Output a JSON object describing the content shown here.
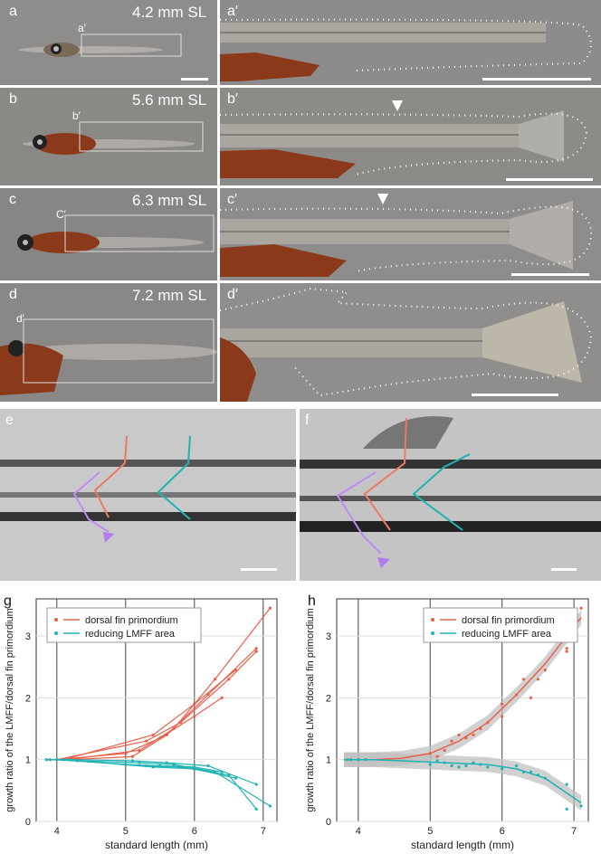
{
  "photo_rows": [
    {
      "label": "a",
      "sub": "a′",
      "zoom_label": "a′",
      "length": "4.2 mm SL"
    },
    {
      "label": "b",
      "sub": "b′",
      "zoom_label": "b′",
      "length": "5.6 mm SL"
    },
    {
      "label": "c",
      "sub": "C′",
      "zoom_label": "c′",
      "length": "6.3 mm SL"
    },
    {
      "label": "d",
      "sub": "d′",
      "zoom_label": "d′",
      "length": "7.2 mm SL"
    }
  ],
  "panel_e": {
    "label": "e"
  },
  "panel_f": {
    "label": "f"
  },
  "colors": {
    "dorsal": "#e8604a",
    "lmff": "#1fb3b3",
    "arrow_purple": "#b07cf0",
    "line_purple": "#c08af5",
    "line_red": "#f07862"
  },
  "chart_data": [
    {
      "panel": "g",
      "type": "line",
      "ylabel": "growth ratio of the LMFF/dorsal fin primordium",
      "xlabel": "standard length (mm)",
      "xlim": [
        3.7,
        7.2
      ],
      "ylim": [
        0,
        3.6
      ],
      "xticks": [
        "4",
        "5",
        "6",
        "7"
      ],
      "yticks": [
        "0",
        "1",
        "2",
        "3"
      ],
      "legend_position": "top-left",
      "legend": [
        "dorsal fin primordium",
        "reducing LMFF area"
      ],
      "series": [
        {
          "name": "dorsal fin primordium",
          "group": "dorsal",
          "x": [
            3.85,
            4.2,
            5.1,
            5.6,
            6.2,
            6.9
          ],
          "y": [
            1.0,
            1.0,
            1.05,
            1.4,
            2.05,
            2.8
          ]
        },
        {
          "name": "dorsal fin primordium",
          "group": "dorsal",
          "x": [
            3.9,
            4.3,
            5.2,
            5.7,
            6.3,
            7.1
          ],
          "y": [
            1.0,
            1.02,
            1.15,
            1.5,
            2.3,
            3.45
          ]
        },
        {
          "name": "dorsal fin primordium",
          "group": "dorsal",
          "x": [
            4.0,
            5.0,
            5.5,
            6.0,
            6.4
          ],
          "y": [
            1.0,
            1.1,
            1.35,
            1.7,
            2.0
          ]
        },
        {
          "name": "dorsal fin primordium",
          "group": "dorsal",
          "x": [
            4.0,
            5.3,
            5.8,
            6.5,
            6.9
          ],
          "y": [
            1.0,
            1.3,
            1.6,
            2.3,
            2.75
          ]
        },
        {
          "name": "dorsal fin primordium",
          "group": "dorsal",
          "x": [
            4.1,
            5.4,
            6.0,
            6.6
          ],
          "y": [
            1.0,
            1.4,
            1.9,
            2.45
          ]
        },
        {
          "name": "reducing LMFF area",
          "group": "lmff",
          "x": [
            3.85,
            4.2,
            5.1,
            5.6,
            6.2,
            6.9
          ],
          "y": [
            1.0,
            1.0,
            0.98,
            0.95,
            0.9,
            0.6
          ]
        },
        {
          "name": "reducing LMFF area",
          "group": "lmff",
          "x": [
            3.9,
            4.3,
            5.2,
            5.7,
            6.3,
            7.1
          ],
          "y": [
            1.0,
            0.98,
            0.95,
            0.92,
            0.8,
            0.25
          ]
        },
        {
          "name": "reducing LMFF area",
          "group": "lmff",
          "x": [
            4.0,
            5.0,
            5.5,
            6.0,
            6.4
          ],
          "y": [
            1.0,
            0.92,
            0.9,
            0.88,
            0.8
          ]
        },
        {
          "name": "reducing LMFF area",
          "group": "lmff",
          "x": [
            4.0,
            5.3,
            5.8,
            6.5,
            6.9
          ],
          "y": [
            1.0,
            0.9,
            0.88,
            0.75,
            0.2
          ]
        },
        {
          "name": "reducing LMFF area",
          "group": "lmff",
          "x": [
            4.1,
            5.4,
            6.0,
            6.6
          ],
          "y": [
            1.0,
            0.88,
            0.85,
            0.7
          ]
        }
      ]
    },
    {
      "panel": "h",
      "type": "scatter",
      "ylabel": "growth ratio of the LMFF/dorsal fin primordium",
      "xlabel": "standard length (mm)",
      "xlim": [
        3.7,
        7.2
      ],
      "ylim": [
        0,
        3.6
      ],
      "xticks": [
        "4",
        "5",
        "6",
        "7"
      ],
      "yticks": [
        "0",
        "1",
        "2",
        "3"
      ],
      "legend_position": "top-right",
      "legend": [
        "dorsal fin primordium",
        "reducing LMFF area"
      ],
      "points_dorsal": {
        "x": [
          3.85,
          3.9,
          4.0,
          4.0,
          4.1,
          5.0,
          5.1,
          5.2,
          5.3,
          5.4,
          5.5,
          5.6,
          5.7,
          5.8,
          6.0,
          6.0,
          6.2,
          6.3,
          6.4,
          6.5,
          6.6,
          6.9,
          6.9,
          7.1
        ],
        "y": [
          1.0,
          1.0,
          1.0,
          1.0,
          1.0,
          1.1,
          1.05,
          1.15,
          1.3,
          1.4,
          1.35,
          1.4,
          1.5,
          1.6,
          1.7,
          1.9,
          2.05,
          2.3,
          2.0,
          2.3,
          2.45,
          2.8,
          2.75,
          3.45
        ]
      },
      "points_lmff": {
        "x": [
          3.85,
          3.9,
          4.0,
          4.0,
          4.1,
          5.0,
          5.1,
          5.2,
          5.3,
          5.4,
          5.5,
          5.6,
          5.7,
          5.8,
          6.0,
          6.0,
          6.2,
          6.3,
          6.4,
          6.5,
          6.6,
          6.9,
          6.9,
          7.1
        ],
        "y": [
          1.0,
          1.0,
          1.0,
          1.0,
          1.0,
          0.92,
          0.98,
          0.95,
          0.9,
          0.88,
          0.9,
          0.95,
          0.92,
          0.88,
          0.88,
          0.85,
          0.9,
          0.8,
          0.8,
          0.75,
          0.7,
          0.6,
          0.2,
          0.25
        ]
      },
      "fit_dorsal": {
        "x": [
          3.8,
          4.2,
          4.6,
          5.0,
          5.4,
          5.8,
          6.2,
          6.6,
          7.1
        ],
        "y": [
          1.0,
          1.0,
          1.02,
          1.1,
          1.3,
          1.6,
          2.05,
          2.55,
          3.3
        ]
      },
      "fit_lmff": {
        "x": [
          3.8,
          4.2,
          4.6,
          5.0,
          5.4,
          5.8,
          6.2,
          6.6,
          7.1
        ],
        "y": [
          1.0,
          1.0,
          0.98,
          0.96,
          0.94,
          0.92,
          0.85,
          0.7,
          0.3
        ]
      },
      "fit_band_halfwidth": 0.12
    }
  ]
}
